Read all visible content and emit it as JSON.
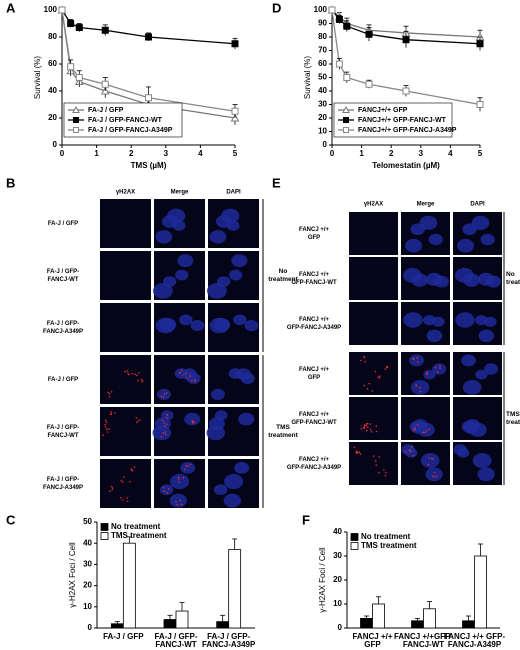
{
  "chart_data": [
    {
      "type": "line",
      "label": "A",
      "x": [
        0,
        0.25,
        0.5,
        1.25,
        2.5,
        5
      ],
      "xlim": [
        0,
        5
      ],
      "xticks": [
        0,
        1,
        2,
        3,
        4,
        5
      ],
      "ylim": [
        0,
        100
      ],
      "yticks": [
        0,
        20,
        40,
        60,
        80,
        100
      ],
      "xlabel": "TMS (µM)",
      "ylabel": "Survival (%)",
      "legend": "lower left",
      "series": [
        {
          "name": "FA-J / GFP",
          "color": "#777777",
          "marker": "triangle",
          "marker_fill": "#ffffff",
          "values": [
            100,
            55,
            47,
            40,
            30,
            20
          ],
          "errors": [
            0,
            4,
            4,
            5,
            5,
            5
          ]
        },
        {
          "name": "FA-J / GFP-FANCJ-WT",
          "color": "#000000",
          "marker": "square",
          "marker_fill": "#000000",
          "values": [
            100,
            90,
            87,
            85,
            80,
            75
          ],
          "errors": [
            0,
            3,
            3,
            4,
            3,
            4
          ]
        },
        {
          "name": "FA-J / GFP-FANCJ-A349P",
          "color": "#888888",
          "marker": "square",
          "marker_fill": "#ffffff",
          "values": [
            100,
            58,
            50,
            45,
            35,
            25
          ],
          "errors": [
            0,
            5,
            5,
            5,
            8,
            5
          ]
        }
      ]
    },
    {
      "type": "line",
      "label": "D",
      "x": [
        0,
        0.25,
        0.5,
        1.25,
        2.5,
        5
      ],
      "xlim": [
        0,
        5
      ],
      "xticks": [
        0,
        1,
        2,
        3,
        4,
        5
      ],
      "ylim": [
        0,
        100
      ],
      "yticks": [
        0,
        10,
        20,
        30,
        40,
        50,
        60,
        70,
        80,
        90,
        100
      ],
      "xlabel": "Telomestatin (µM)",
      "ylabel": "Survival (%)",
      "legend": "lower left",
      "series": [
        {
          "name": "FANCJ+/+ GFP",
          "color": "#777777",
          "marker": "triangle",
          "marker_fill": "#ffffff",
          "values": [
            100,
            95,
            90,
            85,
            83,
            80
          ],
          "errors": [
            0,
            3,
            4,
            4,
            5,
            5
          ]
        },
        {
          "name": "FANCJ+/+ GFP-FANCJ-WT",
          "color": "#000000",
          "marker": "square",
          "marker_fill": "#000000",
          "values": [
            100,
            93,
            88,
            82,
            78,
            75
          ],
          "errors": [
            0,
            3,
            4,
            5,
            6,
            5
          ]
        },
        {
          "name": "FANCJ+/+ GFP-FANCJ-A349P",
          "color": "#888888",
          "marker": "square",
          "marker_fill": "#ffffff",
          "values": [
            100,
            60,
            50,
            45,
            40,
            30
          ],
          "errors": [
            0,
            4,
            4,
            3,
            4,
            5
          ]
        }
      ]
    },
    {
      "type": "bar",
      "label": "C",
      "categories": [
        [
          "FA-J / GFP"
        ],
        [
          "FA-J / GFP-",
          "FANCJ-WT"
        ],
        [
          "FA-J / GFP-",
          "FANCJ-A349P"
        ]
      ],
      "ylim": [
        0,
        50
      ],
      "yticks": [
        0,
        10,
        20,
        30,
        40,
        50
      ],
      "ylabel": "γ-H2AX Foci / Cell",
      "legend": "upper left",
      "series": [
        {
          "name": "No treatment",
          "color": "#000000",
          "values": [
            2,
            4,
            3
          ],
          "errors": [
            1,
            2,
            3
          ]
        },
        {
          "name": "TMS treatment",
          "color": "#ffffff",
          "values": [
            40,
            8,
            37
          ],
          "errors": [
            3,
            4,
            5
          ]
        }
      ]
    },
    {
      "type": "bar",
      "label": "F",
      "categories": [
        [
          "FANCJ +/+",
          "GFP"
        ],
        [
          "FANCJ +/+GFP-",
          "FANCJ-WT"
        ],
        [
          "FANCJ +/+ GFP-",
          "FANCJ-A349P"
        ]
      ],
      "ylim": [
        0,
        40
      ],
      "yticks": [
        0,
        10,
        20,
        30,
        40
      ],
      "ylabel": "γ-H2AX Foci / Cell",
      "legend": "upper left",
      "series": [
        {
          "name": "No treatment",
          "color": "#000000",
          "values": [
            4,
            3,
            3
          ],
          "errors": [
            1,
            1,
            2
          ]
        },
        {
          "name": "TMS treatment",
          "color": "#ffffff",
          "values": [
            10,
            8,
            30
          ],
          "errors": [
            3,
            3,
            5
          ]
        }
      ]
    }
  ],
  "image_panels": [
    {
      "label": "B",
      "columns": [
        "γH2AX",
        "Merge",
        "DAPI"
      ],
      "rows": [
        [
          "FA-J / GFP"
        ],
        [
          "FA-J / GFP-",
          "FANCJ-WT"
        ],
        [
          "FA-J / GFP-",
          "FANCJ-A349P"
        ],
        [
          "FA-J / GFP"
        ],
        [
          "FA-J / GFP-",
          "FANCJ-WT"
        ],
        [
          "FA-J / GFP-",
          "FANCJ-A349P"
        ]
      ],
      "groups": [
        [
          "No",
          "treatment"
        ],
        [
          "TMS",
          "treatment"
        ]
      ]
    },
    {
      "label": "E",
      "columns": [
        "γH2AX",
        "Merge",
        "DAPI"
      ],
      "rows": [
        [
          "FANCJ +/+",
          "GFP"
        ],
        [
          "FANCJ +/+",
          "GFP-FANCJ-WT"
        ],
        [
          "FANCJ +/+",
          "GFP-FANCJ-A349P"
        ],
        [
          "FANCJ +/+",
          "GFP"
        ],
        [
          "FANCJ +/+",
          "GFP-FANCJ-WT"
        ],
        [
          "FANCJ +/+",
          "GFP-FANCJ-A349P"
        ]
      ],
      "groups": [
        [
          "No",
          "treatment"
        ],
        [
          "TMS",
          "treatment"
        ]
      ]
    }
  ]
}
